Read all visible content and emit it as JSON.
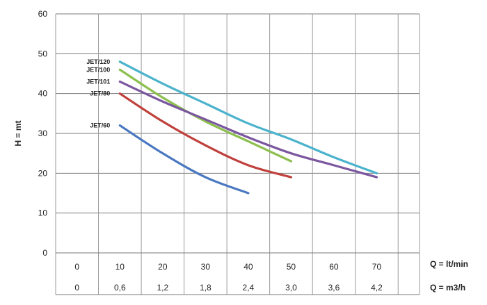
{
  "chart_data": {
    "type": "line",
    "title": "",
    "ylabel": "H = mt",
    "xlabel_primary": "Q = lt/min",
    "xlabel_secondary": "Q = m3/h",
    "ylim": [
      0,
      60
    ],
    "yticks": [
      "0",
      "10",
      "20",
      "30",
      "40",
      "50",
      "60"
    ],
    "xlim": [
      -5,
      80
    ],
    "xticks_primary": [
      "0",
      "10",
      "20",
      "30",
      "40",
      "50",
      "60",
      "70"
    ],
    "xticks_secondary": [
      "0",
      "0,6",
      "1,2",
      "1,8",
      "2,4",
      "3,0",
      "3,6",
      "4,2"
    ],
    "grid": true,
    "series": [
      {
        "name": "JET/120",
        "color": "#4bb3cc",
        "x": [
          10,
          20,
          30,
          40,
          50,
          60,
          70
        ],
        "y": [
          48,
          42.5,
          37.5,
          32.5,
          28.5,
          24,
          20
        ]
      },
      {
        "name": "JET/100",
        "color": "#8cbf4e",
        "x": [
          10,
          20,
          30,
          40,
          50
        ],
        "y": [
          46,
          39,
          33,
          28,
          23
        ]
      },
      {
        "name": "JET/101",
        "color": "#7b57a0",
        "x": [
          10,
          20,
          30,
          40,
          50,
          60,
          70
        ],
        "y": [
          43,
          38,
          33.5,
          29,
          25,
          22,
          19
        ]
      },
      {
        "name": "JET/80",
        "color": "#c0403c",
        "x": [
          10,
          20,
          30,
          40,
          50
        ],
        "y": [
          40,
          33,
          27,
          22,
          19
        ]
      },
      {
        "name": "JET/60",
        "color": "#4a78c0",
        "x": [
          10,
          20,
          30,
          40
        ],
        "y": [
          32,
          25,
          19,
          15
        ]
      }
    ]
  }
}
